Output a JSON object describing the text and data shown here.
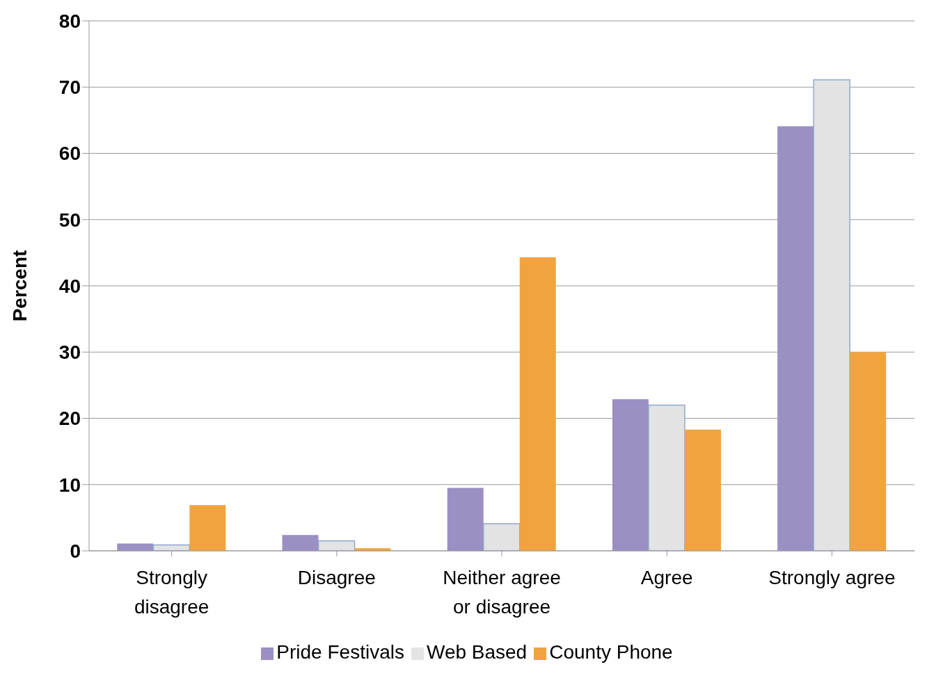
{
  "chart_data": {
    "type": "bar",
    "ylabel": "Percent",
    "categories": [
      "Strongly disagree",
      "Disagree",
      "Neither agree or disagree",
      "Agree",
      "Strongly agree"
    ],
    "series": [
      {
        "name": "Pride Festivals",
        "color": "#9b8fc4",
        "values": [
          1.1,
          2.4,
          9.5,
          22.9,
          64.1
        ]
      },
      {
        "name": "Web Based",
        "color": "#e3e3e3",
        "values": [
          0.9,
          1.5,
          4.1,
          22.0,
          71.1
        ]
      },
      {
        "name": "County Phone",
        "color": "#f0a33f",
        "values": [
          6.9,
          0.4,
          44.3,
          18.3,
          30.0
        ]
      }
    ],
    "ylim": [
      0,
      80
    ],
    "yticks": [
      0,
      10,
      20,
      30,
      40,
      50,
      60,
      70,
      80
    ],
    "grid": "y",
    "legend": "bottom"
  }
}
